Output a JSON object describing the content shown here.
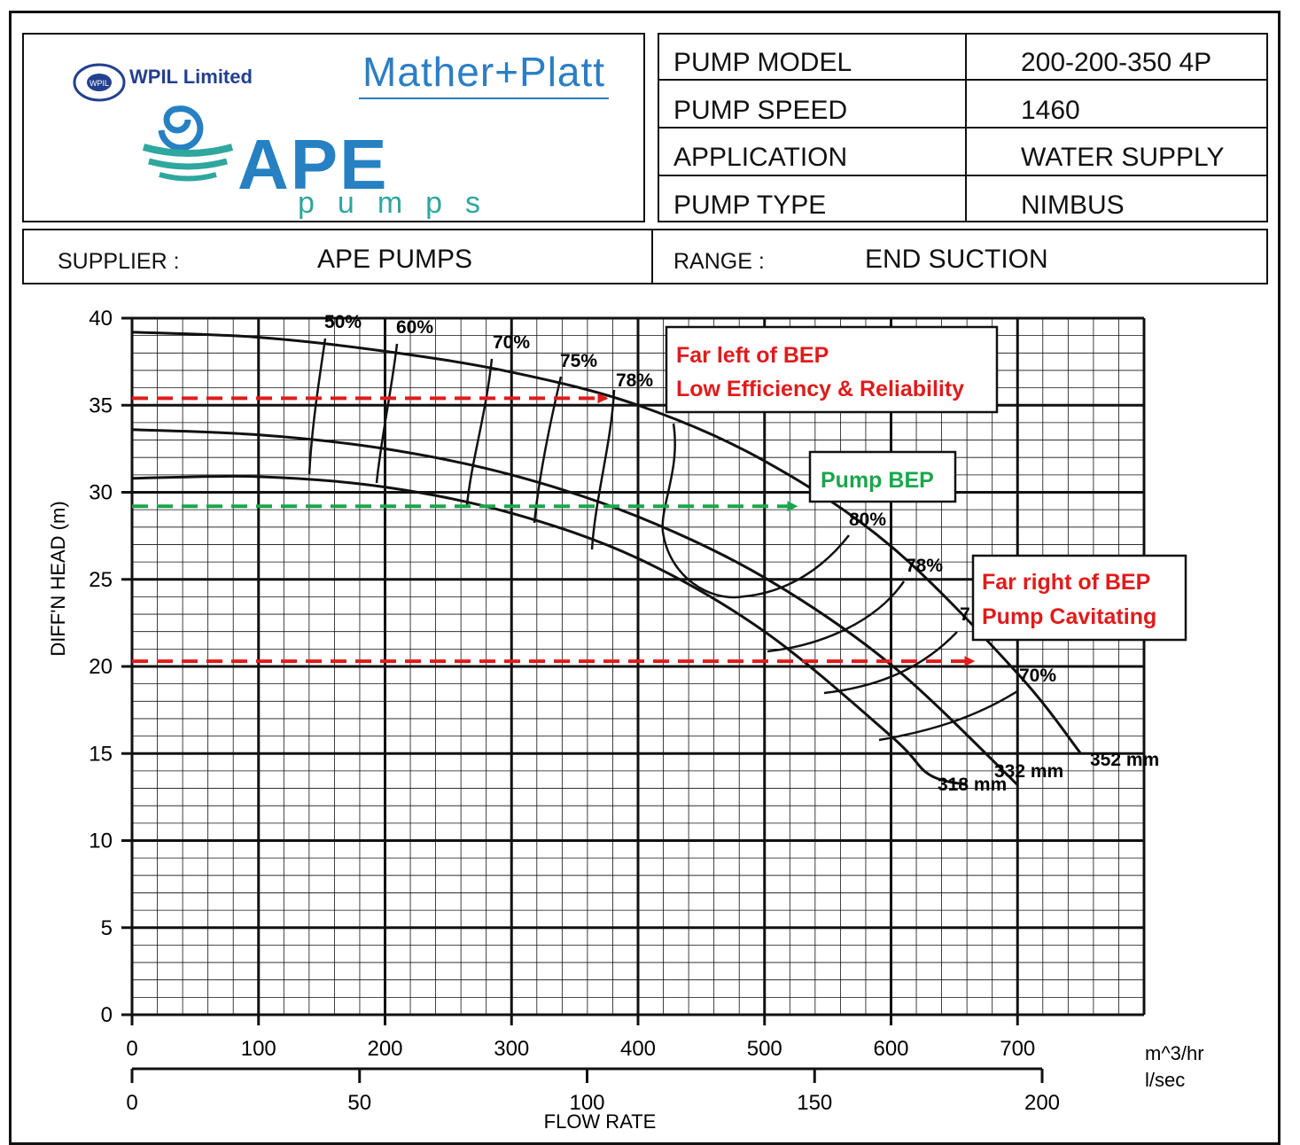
{
  "header": {
    "logos": {
      "wpil": "WPIL Limited",
      "mather_platt": "Mather+Platt",
      "ape": "APE",
      "pumps": "pumps"
    },
    "info_rows": [
      {
        "label": "PUMP MODEL",
        "value": "200-200-350 4P"
      },
      {
        "label": "PUMP SPEED",
        "value": "1460"
      },
      {
        "label": "APPLICATION",
        "value": "WATER SUPPLY"
      },
      {
        "label": "PUMP TYPE",
        "value": "NIMBUS"
      }
    ],
    "supplier_label": "SUPPLIER :",
    "supplier_value": "APE PUMPS",
    "range_label": "RANGE :",
    "range_value": "END SUCTION"
  },
  "colors": {
    "red": "#e01b1b",
    "green": "#1aa64a",
    "grid": "#111111"
  },
  "chart_data": {
    "type": "line",
    "ylabel": "DIFF'N HEAD (m)",
    "xlabel": "FLOW RATE",
    "x_unit_primary": "m^3/hr",
    "x_unit_secondary": "l/sec",
    "xlim": [
      0,
      800
    ],
    "ylim": [
      0,
      40
    ],
    "x_ticks": [
      0,
      100,
      200,
      300,
      400,
      500,
      600,
      700
    ],
    "x_secondary_ticks": [
      0,
      50,
      100,
      150,
      200
    ],
    "y_ticks": [
      0,
      5,
      10,
      15,
      20,
      25,
      30,
      35,
      40
    ],
    "grid": true,
    "series": [
      {
        "name": "352 mm",
        "x": [
          0,
          100,
          200,
          300,
          400,
          500,
          600,
          700,
          750
        ],
        "y": [
          39.2,
          38.9,
          38.1,
          36.9,
          35.0,
          31.8,
          26.9,
          19.6,
          15.0
        ]
      },
      {
        "name": "332 mm",
        "x": [
          0,
          100,
          200,
          300,
          400,
          500,
          600,
          700
        ],
        "y": [
          33.6,
          33.3,
          32.5,
          31.0,
          28.6,
          25.1,
          20.1,
          13.2
        ]
      },
      {
        "name": "318 mm",
        "x": [
          0,
          100,
          200,
          300,
          400,
          500,
          600,
          630,
          660
        ],
        "y": [
          30.8,
          30.9,
          30.3,
          28.8,
          26.2,
          22.0,
          16.0,
          13.8,
          13.2
        ]
      }
    ],
    "efficiency_labels": [
      "50%",
      "60%",
      "70%",
      "75%",
      "78%",
      "80%",
      "78%",
      "7",
      "70%"
    ],
    "annotations": [
      {
        "text_line1": "Far left of BEP",
        "text_line2": "Low Efficiency & Reliability",
        "color": "red",
        "arrow_y": 35.4,
        "arrow_x": [
          0,
          375
        ]
      },
      {
        "text_line1": "Pump BEP",
        "color": "green",
        "arrow_y": 29.2,
        "arrow_x": [
          0,
          525
        ]
      },
      {
        "text_line1": "Far right of BEP",
        "text_line2": "Pump Cavitating",
        "color": "red",
        "arrow_y": 20.3,
        "arrow_x": [
          0,
          665
        ]
      }
    ]
  }
}
